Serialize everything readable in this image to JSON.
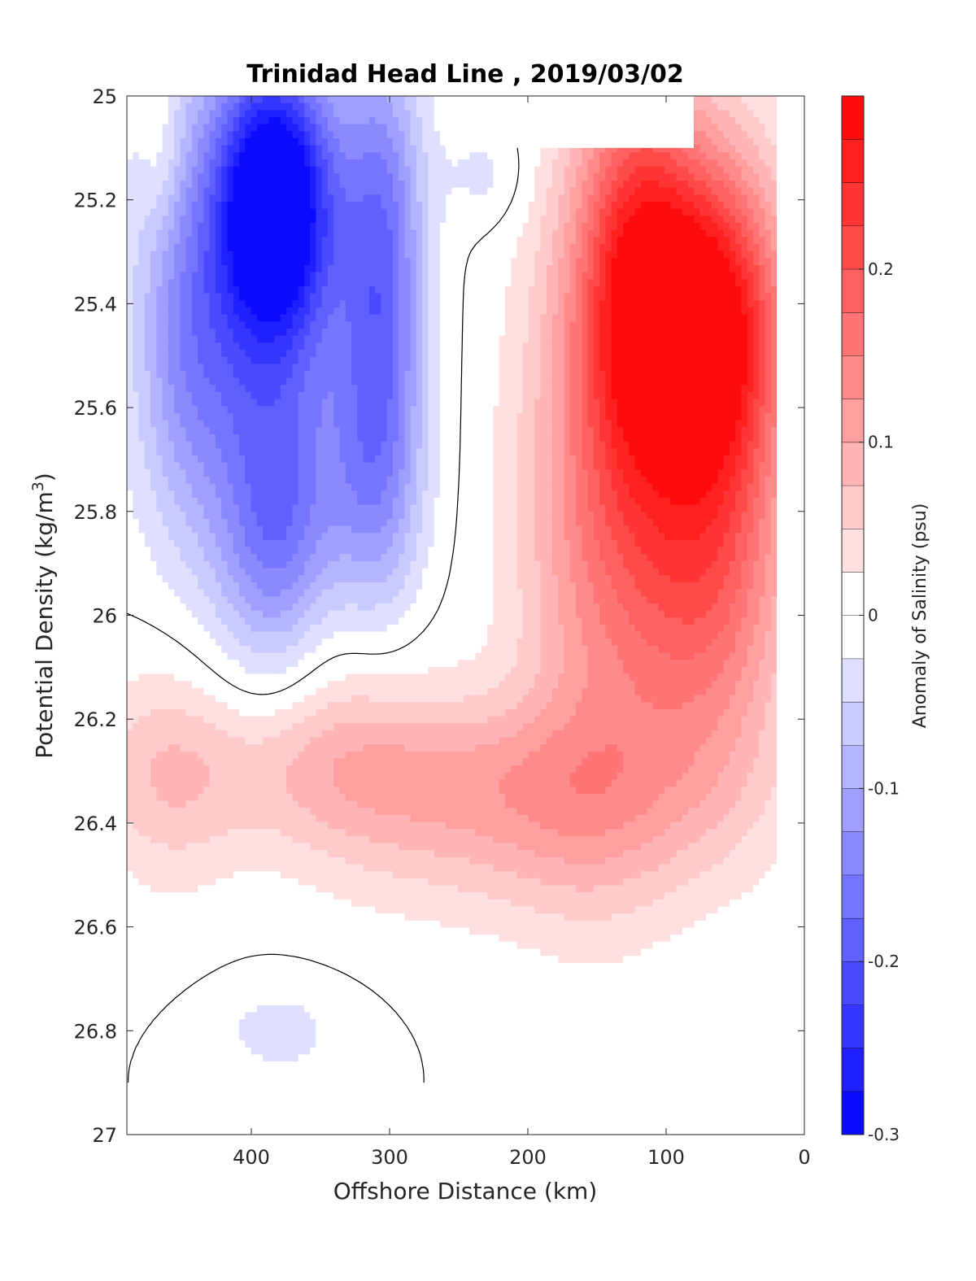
{
  "chart_data": {
    "type": "heatmap",
    "title": "Trinidad Head Line , 2019/03/02",
    "xlabel": "Offshore Distance (km)",
    "ylabel_main": "Potential Density (kg/m",
    "ylabel_sup": "3",
    "ylabel_close": ")",
    "colorbar_label": "Anomaly of Salinity (psu)",
    "xlim": [
      490,
      0
    ],
    "ylim": [
      27,
      25
    ],
    "x_ticks": [
      "400",
      "300",
      "200",
      "100",
      "0"
    ],
    "y_ticks": [
      "25",
      "25.2",
      "25.4",
      "25.6",
      "25.8",
      "26",
      "26.2",
      "26.4",
      "26.6",
      "26.8",
      "27"
    ],
    "colorbar": {
      "range": [
        -0.3,
        0.3
      ],
      "ticks": [
        "0.2",
        "0.1",
        "0",
        "-0.1",
        "-0.2",
        "-0.3"
      ],
      "colormap": "blue-white-red",
      "negative_color": "#0000ff",
      "zero_color": "#ffffff",
      "positive_color": "#ff0000"
    },
    "data_extent": {
      "x_max": 490,
      "x_min_top": 20,
      "x_min_bottom": 30,
      "y_bottom": 26.9
    },
    "grid": false,
    "legend": "colorbar-right"
  }
}
